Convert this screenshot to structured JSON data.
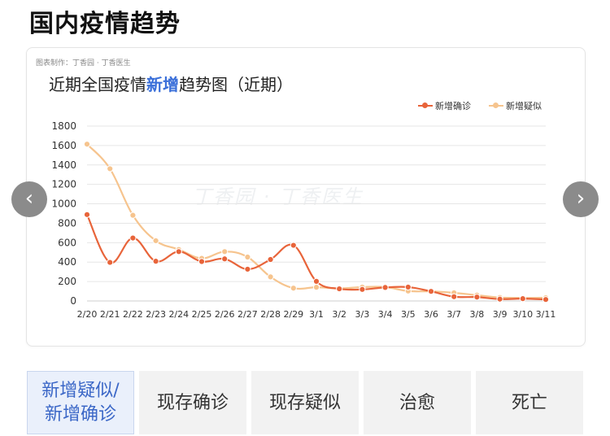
{
  "page": {
    "title": "国内疫情趋势"
  },
  "card": {
    "credit": "图表制作：丁香园 · 丁香医生",
    "title_prefix": "近期全国疫情",
    "title_highlight": "新增",
    "title_suffix": "趋势图（近期）",
    "watermark": "丁香园 · 丁香医生"
  },
  "nav": {
    "prev_icon": "chevron-left-icon",
    "next_icon": "chevron-right-icon",
    "prev_glyph": "‹",
    "next_glyph": "›"
  },
  "tabs": [
    {
      "label": "新增疑似/新增确诊",
      "active": true
    },
    {
      "label": "现存确诊",
      "active": false
    },
    {
      "label": "现存疑似",
      "active": false
    },
    {
      "label": "治愈",
      "active": false
    },
    {
      "label": "死亡",
      "active": false
    }
  ],
  "chart_data": {
    "type": "line",
    "title": "近期全国疫情新增趋势图（近期）",
    "categories": [
      "2/20",
      "2/21",
      "2/22",
      "2/23",
      "2/24",
      "2/25",
      "2/26",
      "2/27",
      "2/28",
      "2/29",
      "3/1",
      "3/2",
      "3/3",
      "3/4",
      "3/5",
      "3/6",
      "3/7",
      "3/8",
      "3/9",
      "3/10",
      "3/11"
    ],
    "ylim": [
      0,
      1800
    ],
    "yticks": [
      0,
      200,
      400,
      600,
      800,
      1000,
      1200,
      1400,
      1600,
      1800
    ],
    "grid": true,
    "legend_position": "top-right",
    "series": [
      {
        "name": "新增确诊",
        "color": "#e8643a",
        "values": [
          889,
          397,
          648,
          409,
          508,
          406,
          433,
          327,
          427,
          573,
          202,
          125,
          119,
          139,
          143,
          99,
          44,
          40,
          19,
          24,
          15
        ]
      },
      {
        "name": "新增疑似",
        "color": "#f6c48e",
        "values": [
          1614,
          1361,
          882,
          620,
          530,
          439,
          508,
          452,
          248,
          132,
          141,
          129,
          143,
          143,
          102,
          99,
          84,
          60,
          36,
          31,
          33
        ]
      }
    ]
  }
}
